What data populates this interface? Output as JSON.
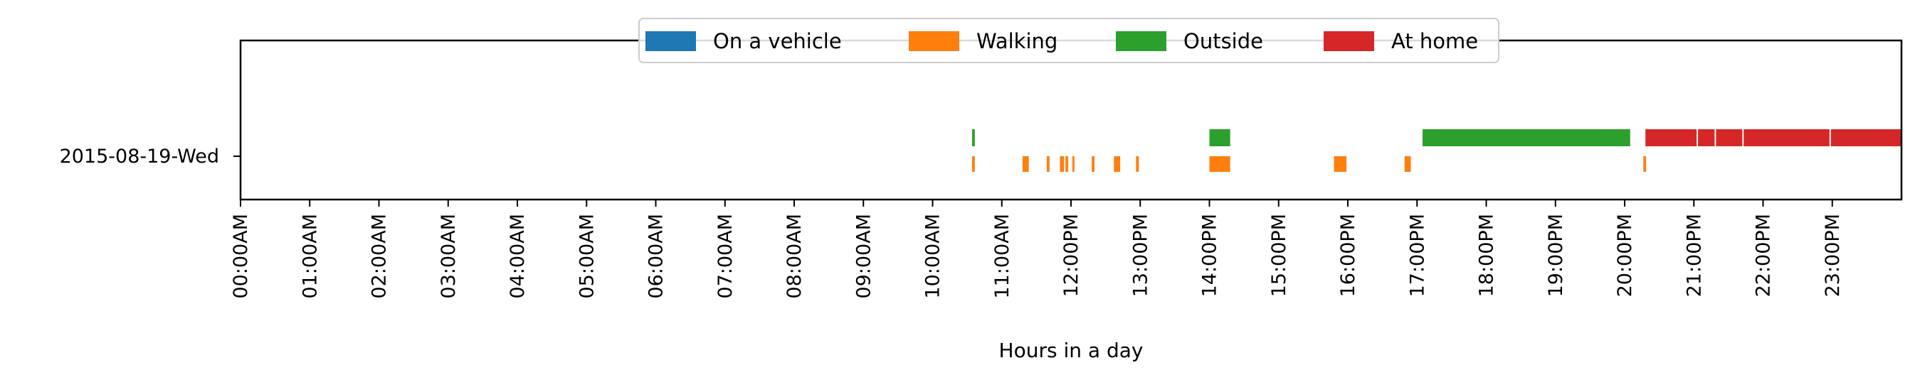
{
  "chart_data": {
    "type": "timeline",
    "title": "",
    "xlabel": "Hours in a day",
    "ylabel": "",
    "x_unit": "hours",
    "xlim": [
      0,
      24
    ],
    "grid": false,
    "legend_position": "top-center",
    "x_tick_labels": [
      "00:00AM",
      "01:00AM",
      "02:00AM",
      "03:00AM",
      "04:00AM",
      "05:00AM",
      "06:00AM",
      "07:00AM",
      "08:00AM",
      "09:00AM",
      "10:00AM",
      "11:00AM",
      "12:00PM",
      "13:00PM",
      "14:00PM",
      "15:00PM",
      "16:00PM",
      "17:00PM",
      "18:00PM",
      "19:00PM",
      "20:00PM",
      "21:00PM",
      "22:00PM",
      "23:00PM"
    ],
    "y_categories": [
      "2015-08-19-Wed"
    ],
    "legend": [
      {
        "name": "On a vehicle",
        "color": "#1f77b4"
      },
      {
        "name": "Walking",
        "color": "#ff7f0e"
      },
      {
        "name": "Outside",
        "color": "#2ca02c"
      },
      {
        "name": "At home",
        "color": "#d62728"
      }
    ],
    "series": [
      {
        "name": "On a vehicle",
        "color": "#1f77b4",
        "lane": "vehicle",
        "intervals": []
      },
      {
        "name": "Walking",
        "color": "#ff7f0e",
        "lane": "walking",
        "intervals": [
          [
            10.57,
            10.61
          ],
          [
            11.3,
            11.39
          ],
          [
            11.65,
            11.69
          ],
          [
            11.84,
            11.9
          ],
          [
            11.92,
            11.96
          ],
          [
            12.02,
            12.05
          ],
          [
            12.3,
            12.34
          ],
          [
            12.62,
            12.71
          ],
          [
            12.94,
            12.98
          ],
          [
            14.0,
            14.3
          ],
          [
            15.8,
            15.98
          ],
          [
            16.82,
            16.91
          ],
          [
            20.27,
            20.31
          ]
        ]
      },
      {
        "name": "Outside",
        "color": "#2ca02c",
        "lane": "upper",
        "intervals": [
          [
            10.57,
            10.61
          ],
          [
            14.0,
            14.3
          ],
          [
            17.08,
            20.08
          ]
        ]
      },
      {
        "name": "At home",
        "color": "#d62728",
        "lane": "upper",
        "intervals": [
          [
            20.3,
            21.04
          ],
          [
            21.06,
            21.3
          ],
          [
            21.32,
            21.7
          ],
          [
            21.72,
            22.96
          ],
          [
            22.98,
            24.0
          ]
        ]
      }
    ]
  }
}
